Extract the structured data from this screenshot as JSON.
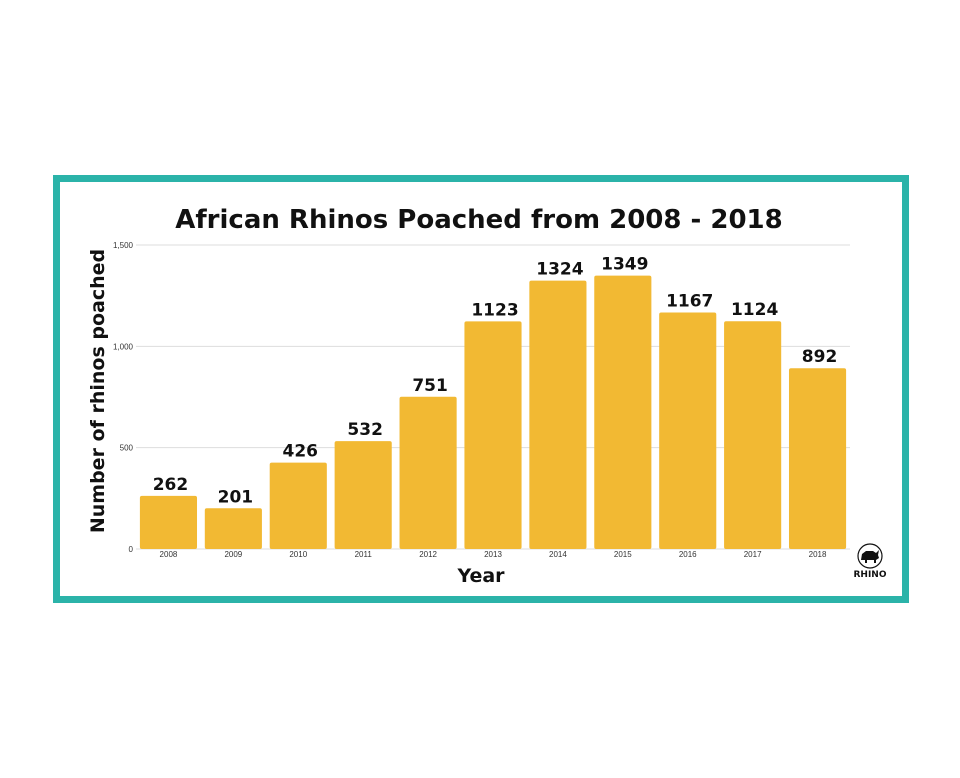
{
  "colors": {
    "frame": "#2bb3a9",
    "bar": "#f2b933",
    "background": "#ffffff"
  },
  "chart_data": {
    "type": "bar",
    "title": "African Rhinos Poached from 2008 - 2018",
    "xlabel": "Year",
    "ylabel": "Number of rhinos poached",
    "categories": [
      "2008",
      "2009",
      "2010",
      "2011",
      "2012",
      "2013",
      "2014",
      "2015",
      "2016",
      "2017",
      "2018"
    ],
    "values": [
      262,
      201,
      426,
      532,
      751,
      1123,
      1324,
      1349,
      1167,
      1124,
      892
    ],
    "data_labels": [
      "262",
      "201",
      "426",
      "532",
      "751",
      "1123",
      "1324",
      "1349",
      "1167",
      "1124",
      "892"
    ],
    "ylim": [
      0,
      1500
    ],
    "yticks": [
      0,
      500,
      1000,
      1500
    ],
    "ytick_labels": [
      "0",
      "500",
      "1,000",
      "1,500"
    ],
    "grid": true,
    "legend": "none"
  },
  "logo": {
    "name": "RHINO",
    "icon": "rhino-icon"
  }
}
